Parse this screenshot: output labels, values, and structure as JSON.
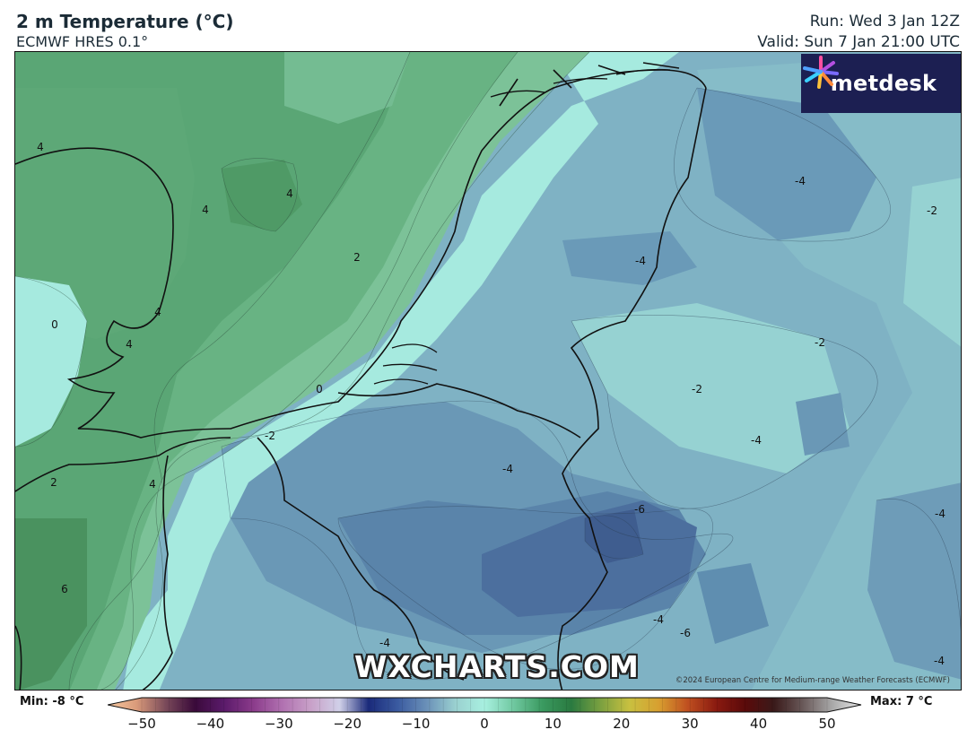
{
  "header": {
    "title": "2 m Temperature (°C)",
    "model": "ECMWF HRES 0.1°",
    "run": "Run: Wed 3 Jan 12Z",
    "valid": "Valid: Sun 7 Jan 21:00 UTC"
  },
  "branding": {
    "logo_text": "metdesk",
    "watermark": "WXCHARTS.COM",
    "copyright": "©2024 European Centre for Medium-range Weather Forecasts (ECMWF)"
  },
  "contour_labels": [
    {
      "text": "4"
    },
    {
      "text": "4"
    },
    {
      "text": "4"
    },
    {
      "text": "2"
    },
    {
      "text": "4"
    },
    {
      "text": "4"
    },
    {
      "text": "0"
    },
    {
      "text": "0"
    },
    {
      "text": "2"
    },
    {
      "text": "4"
    },
    {
      "text": "-2"
    },
    {
      "text": "6"
    },
    {
      "text": "-4"
    },
    {
      "text": "-4"
    },
    {
      "text": "-2"
    },
    {
      "text": "-2"
    },
    {
      "text": "-2"
    },
    {
      "text": "-4"
    },
    {
      "text": "-4"
    },
    {
      "text": "-6"
    },
    {
      "text": "-4"
    },
    {
      "text": "-6"
    },
    {
      "text": "-4"
    },
    {
      "text": "-4"
    },
    {
      "text": "-4"
    }
  ],
  "colorbar": {
    "min_label": "Min: -8 °C",
    "max_label": "Max: 7 °C",
    "ticks": [
      "−50",
      "−40",
      "−30",
      "−20",
      "−10",
      "0",
      "10",
      "20",
      "30",
      "40",
      "50"
    ],
    "range": [
      -50,
      50
    ],
    "stops": [
      "#f7c9a0",
      "#d99a7a",
      "#7a4a5a",
      "#3a0a3a",
      "#5a1a6a",
      "#8a3a8a",
      "#b070b0",
      "#c8a0c8",
      "#d0d0e8",
      "#1a2a7a",
      "#3a5aa0",
      "#6a90b8",
      "#9ad0d0",
      "#a8f0e0",
      "#70c8a0",
      "#3a9a60",
      "#2a7a40",
      "#7aa040",
      "#c8c040",
      "#d8a030",
      "#c05020",
      "#8a1a10",
      "#5a0a0a",
      "#3a1a1a",
      "#6a5a5a",
      "#a8a8a8",
      "#e8e8e8"
    ]
  },
  "colors": {
    "sea_green_dark": "#4f9a66",
    "sea_green": "#62ad7a",
    "sea_green_light": "#7cc298",
    "cyan_light": "#a6eadf",
    "blue_light": "#8ec4cb",
    "blue_mid": "#74a8bd",
    "blue_dark": "#5a86aa",
    "blue_darker": "#4a6b99"
  }
}
